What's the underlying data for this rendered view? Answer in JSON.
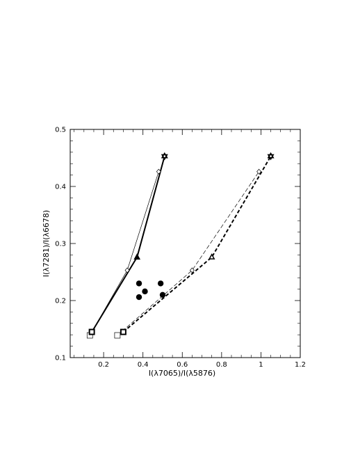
{
  "chart_data": {
    "type": "line",
    "xlabel": "I(λ7065)/I(λ5876)",
    "ylabel": "I(λ7281)/I(λ6678)",
    "xlim": [
      0.03,
      1.2
    ],
    "ylim": [
      0.1,
      0.5
    ],
    "x_ticks": [
      0.2,
      0.4,
      0.6,
      0.8,
      1.0,
      1.2
    ],
    "x_tick_labels": [
      "0.2",
      "0.4",
      "0.6",
      "0.8",
      "1",
      "1.2"
    ],
    "y_ticks": [
      0.1,
      0.2,
      0.3,
      0.4,
      0.5
    ],
    "y_tick_labels": [
      "0.1",
      "0.2",
      "0.3",
      "0.4",
      "0.5"
    ],
    "grid": false,
    "series": [
      {
        "style": "thin-solid",
        "color": "#000000",
        "markers": [
          "open-square",
          "open-diamond",
          "open-diamond"
        ],
        "points": [
          [
            0.13,
            0.139
          ],
          [
            0.32,
            0.253
          ],
          [
            0.48,
            0.426
          ]
        ]
      },
      {
        "style": "thick-solid",
        "color": "#000000",
        "markers": [
          "bold-square",
          "filled-triangle",
          "star"
        ],
        "points": [
          [
            0.14,
            0.145
          ],
          [
            0.37,
            0.276
          ],
          [
            0.51,
            0.453
          ]
        ]
      },
      {
        "style": "thin-dashed",
        "color": "#000000",
        "markers": [
          "open-square",
          "open-diamond",
          "open-diamond"
        ],
        "points": [
          [
            0.27,
            0.139
          ],
          [
            0.65,
            0.253
          ],
          [
            0.99,
            0.426
          ]
        ]
      },
      {
        "style": "thick-dashed",
        "color": "#000000",
        "markers": [
          "bold-square",
          "open-triangle",
          "star"
        ],
        "points": [
          [
            0.3,
            0.145
          ],
          [
            0.75,
            0.276
          ],
          [
            1.05,
            0.453
          ]
        ]
      }
    ],
    "observed_points": [
      [
        0.38,
        0.23
      ],
      [
        0.41,
        0.216
      ],
      [
        0.38,
        0.206
      ],
      [
        0.49,
        0.23
      ],
      [
        0.5,
        0.21
      ]
    ]
  }
}
